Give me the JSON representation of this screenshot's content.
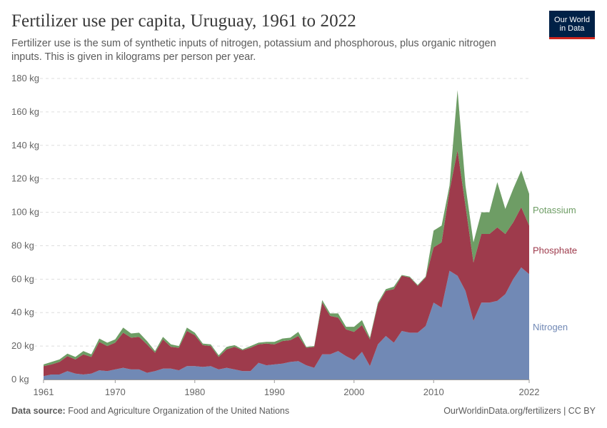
{
  "header": {
    "title": "Fertilizer use per capita, Uruguay, 1961 to 2022",
    "subtitle": "Fertilizer use is the sum of synthetic inputs of nitrogen, potassium and phosphorous, plus organic nitrogen inputs. This is given in kilograms per person per year."
  },
  "logo": {
    "line1": "Our World",
    "line2": "in Data"
  },
  "footer": {
    "source_label": "Data source:",
    "source_text": "Food and Agriculture Organization of the United Nations",
    "right_text": "OurWorldinData.org/fertilizers | CC BY"
  },
  "chart_data": {
    "type": "area",
    "stacked": true,
    "title": "Fertilizer use per capita, Uruguay, 1961 to 2022",
    "ylabel": "",
    "xlabel": "",
    "ylim": [
      0,
      180
    ],
    "xlim": [
      1961,
      2022
    ],
    "y_ticks": [
      0,
      20,
      40,
      60,
      80,
      100,
      120,
      140,
      160,
      180
    ],
    "y_tick_labels": [
      "0 kg",
      "20 kg",
      "40 kg",
      "60 kg",
      "80 kg",
      "100 kg",
      "120 kg",
      "140 kg",
      "160 kg",
      "180 kg"
    ],
    "x_ticks": [
      1961,
      1970,
      1980,
      1990,
      2000,
      2010,
      2022
    ],
    "x_tick_labels": [
      "1961",
      "1970",
      "1980",
      "1990",
      "2000",
      "2010",
      "2022"
    ],
    "grid": "horizontal dashed",
    "legend_position": "right, inline labels",
    "x": [
      1961,
      1962,
      1963,
      1964,
      1965,
      1966,
      1967,
      1968,
      1969,
      1970,
      1971,
      1972,
      1973,
      1974,
      1975,
      1976,
      1977,
      1978,
      1979,
      1980,
      1981,
      1982,
      1983,
      1984,
      1985,
      1986,
      1987,
      1988,
      1989,
      1990,
      1991,
      1992,
      1993,
      1994,
      1995,
      1996,
      1997,
      1998,
      1999,
      2000,
      2001,
      2002,
      2003,
      2004,
      2005,
      2006,
      2007,
      2008,
      2009,
      2010,
      2011,
      2012,
      2013,
      2014,
      2015,
      2016,
      2017,
      2018,
      2019,
      2020,
      2021,
      2022
    ],
    "series": [
      {
        "name": "Nitrogen",
        "color": "#7189b5",
        "values": [
          2,
          3,
          3,
          5,
          3.5,
          3,
          3.5,
          5.5,
          5,
          6,
          7,
          6,
          6,
          4,
          5,
          6.5,
          6.5,
          5.5,
          8,
          8,
          7.5,
          8,
          6,
          7,
          6,
          5,
          5,
          10,
          8.5,
          9,
          9.5,
          10.5,
          11,
          8.5,
          7,
          15,
          15,
          17,
          14,
          11.5,
          16.5,
          8,
          21,
          26,
          22,
          29,
          28,
          28,
          32,
          46,
          43,
          65,
          62,
          53,
          35,
          46,
          46,
          47,
          51,
          60,
          67,
          63
        ]
      },
      {
        "name": "Phosphate",
        "color": "#9e3b4c",
        "values": [
          6,
          6,
          7.5,
          9,
          8.5,
          12,
          10,
          17,
          15,
          16,
          21,
          19,
          19.5,
          17,
          11,
          17.5,
          13,
          13.5,
          21,
          18.5,
          13,
          12,
          7.5,
          11,
          13.5,
          12.5,
          14,
          11,
          13,
          12,
          13.5,
          13,
          15,
          10.5,
          12.5,
          31,
          23,
          20,
          16,
          17,
          16,
          16,
          24,
          27,
          32,
          33,
          33,
          28,
          29,
          33,
          39,
          48,
          75,
          51,
          35,
          41,
          41,
          44,
          36,
          34,
          36,
          29
        ]
      },
      {
        "name": "Potassium",
        "color": "#6e9d65",
        "values": [
          1,
          1.5,
          1.5,
          1.5,
          1.5,
          2,
          1.5,
          2,
          2,
          2,
          3,
          2.5,
          2.5,
          2,
          1,
          1.5,
          1.5,
          1,
          2,
          1.5,
          1,
          1,
          1,
          1.5,
          1,
          0.5,
          1,
          1,
          1,
          1.5,
          1.5,
          1.5,
          2.5,
          0.5,
          0.5,
          1.5,
          1.5,
          2.5,
          1.5,
          3,
          3,
          1,
          1,
          1,
          1.5,
          0.5,
          0.5,
          0.5,
          0.5,
          10,
          10,
          3,
          36,
          12,
          12,
          13,
          13,
          27,
          15,
          20,
          22,
          19
        ]
      }
    ]
  }
}
